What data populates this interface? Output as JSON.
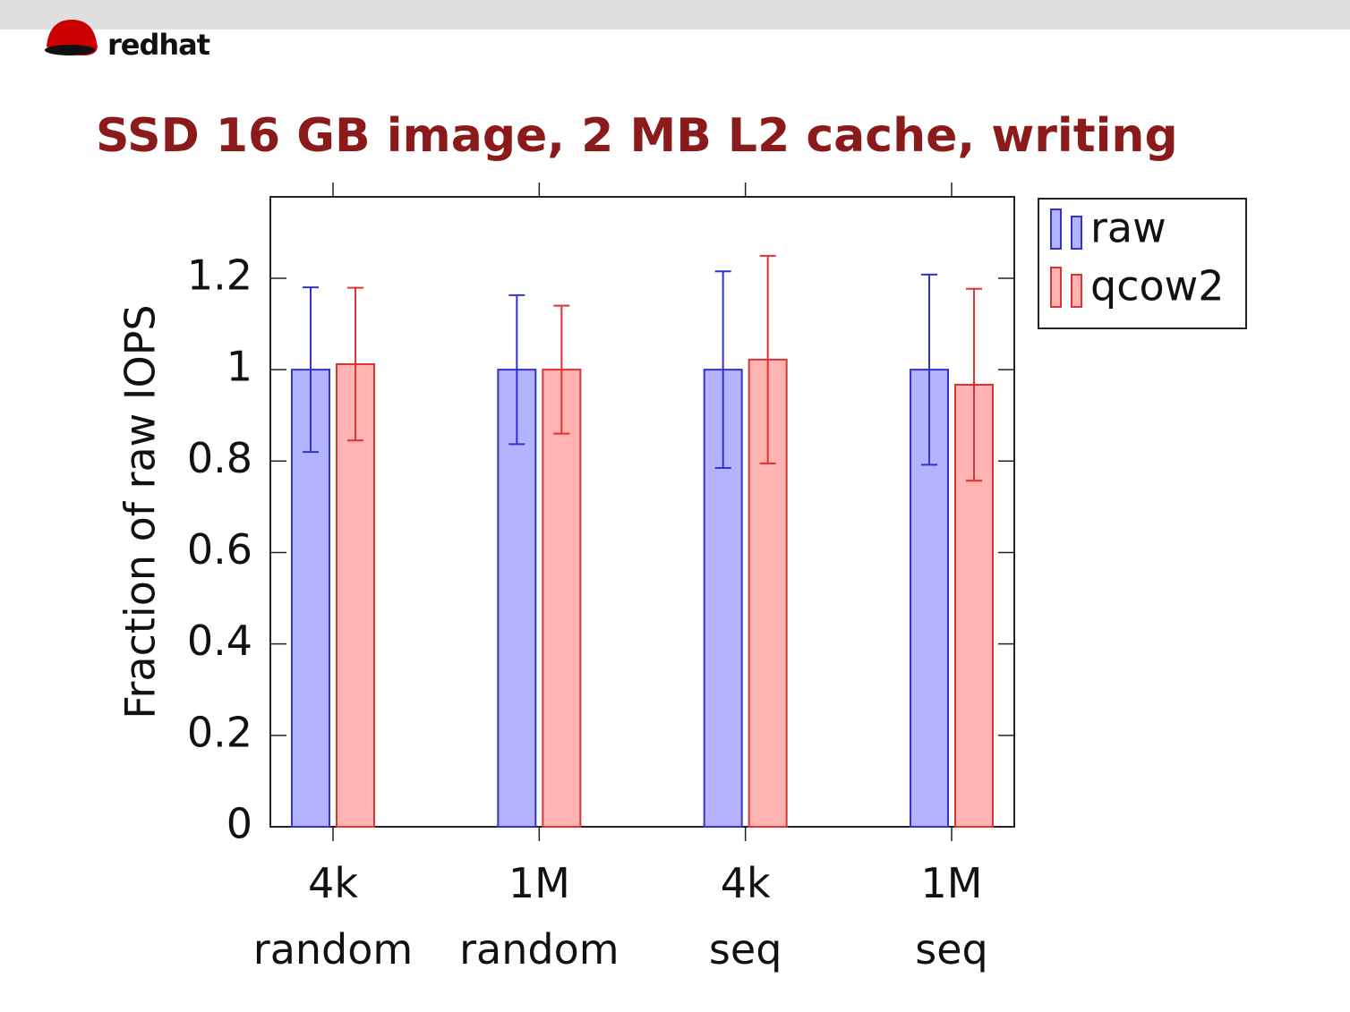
{
  "header": {
    "logo": "redhat"
  },
  "chart_data": {
    "type": "bar",
    "title": "SSD 16 GB image, 2 MB L2 cache, writing",
    "ylabel": "Fraction of raw IOPS",
    "categories": [
      "4k\nrandom",
      "1M\nrandom",
      "4k\nseq",
      "1M\nseq"
    ],
    "series": [
      {
        "name": "raw",
        "color": "#b3b3ff",
        "edge_color": "#3333cc",
        "values": [
          1.0,
          1.0,
          1.0,
          1.0
        ],
        "errors": [
          0.18,
          0.163,
          0.215,
          0.208
        ]
      },
      {
        "name": "qcow2",
        "color": "#ffb3b3",
        "edge_color": "#dd3333",
        "values": [
          1.012,
          1.0,
          1.022,
          0.967
        ],
        "errors": [
          0.167,
          0.14,
          0.227,
          0.21
        ]
      }
    ],
    "ylim": [
      0,
      1.378
    ],
    "yticks": [
      0,
      0.2,
      0.4,
      0.6,
      0.8,
      1,
      1.2
    ],
    "grid": false
  }
}
